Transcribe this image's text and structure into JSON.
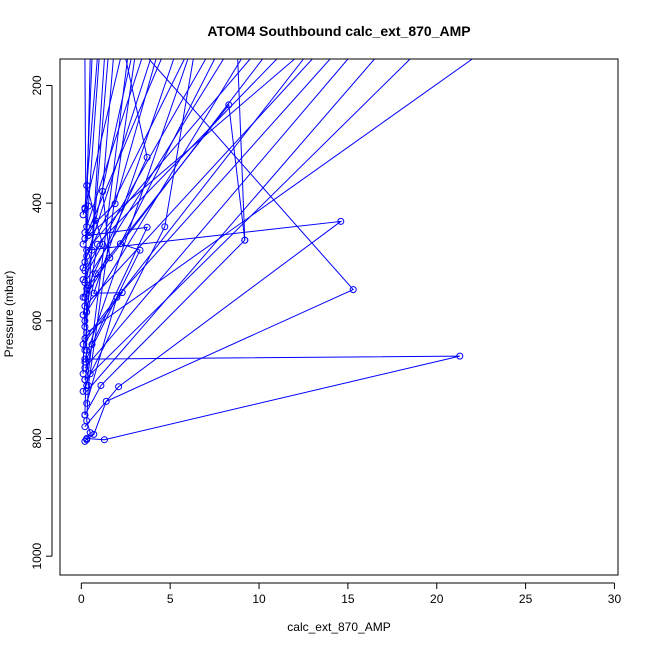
{
  "chart_data": {
    "type": "line",
    "title": "ATOM4 Southbound calc_ext_870_AMP",
    "xlabel": "calc_ext_870_AMP",
    "ylabel": "Pressure (mbar)",
    "xlim": [
      -1.2,
      30.2
    ],
    "ylim": [
      1032,
      155
    ],
    "y_reversed": true,
    "x_ticks": [
      0,
      5,
      10,
      15,
      20,
      25,
      30
    ],
    "x_tick_labels": [
      "0",
      "5",
      "10",
      "15",
      "20",
      "25",
      "30"
    ],
    "y_ticks": [
      200,
      400,
      600,
      800,
      1000
    ],
    "y_tick_labels": [
      "200",
      "400",
      "600",
      "800",
      "1000"
    ],
    "grid": false,
    "legend": "none",
    "line_color": "#0000ff",
    "point_style": "open-circle",
    "series": [
      {
        "values": [
          {
            "x": 0.3,
            "y": 800
          },
          {
            "x": 1.3,
            "y": 802
          },
          {
            "x": 21.3,
            "y": 660
          },
          {
            "x": 0.2,
            "y": 665
          },
          {
            "x": 6.0,
            "y": 155
          }
        ]
      },
      {
        "values": [
          {
            "x": 0.2,
            "y": 805
          },
          {
            "x": 0.5,
            "y": 790
          },
          {
            "x": 0.3,
            "y": 770
          },
          {
            "x": 0.4,
            "y": 710
          },
          {
            "x": 3.0,
            "y": 155
          }
        ]
      },
      {
        "values": [
          {
            "x": 0.3,
            "y": 802
          },
          {
            "x": 0.7,
            "y": 793
          },
          {
            "x": 1.4,
            "y": 737
          },
          {
            "x": 15.3,
            "y": 547
          },
          {
            "x": 3.8,
            "y": 155
          }
        ]
      },
      {
        "values": [
          {
            "x": 0.2,
            "y": 780
          },
          {
            "x": 2.1,
            "y": 712
          },
          {
            "x": 14.6,
            "y": 431
          },
          {
            "x": 0.3,
            "y": 480
          },
          {
            "x": 9.5,
            "y": 155
          }
        ]
      },
      {
        "values": [
          {
            "x": 0.2,
            "y": 760
          },
          {
            "x": 1.1,
            "y": 710
          },
          {
            "x": 9.2,
            "y": 463
          },
          {
            "x": 8.8,
            "y": 155
          }
        ]
      },
      {
        "values": [
          {
            "x": 0.1,
            "y": 720
          },
          {
            "x": 0.5,
            "y": 690
          },
          {
            "x": 4.7,
            "y": 440
          },
          {
            "x": 6.3,
            "y": 155
          }
        ]
      },
      {
        "values": [
          {
            "x": 0.2,
            "y": 700
          },
          {
            "x": 0.6,
            "y": 640
          },
          {
            "x": 3.7,
            "y": 441
          },
          {
            "x": 0.4,
            "y": 455
          },
          {
            "x": 12.0,
            "y": 155
          }
        ]
      },
      {
        "values": [
          {
            "x": 0.2,
            "y": 670
          },
          {
            "x": 3.3,
            "y": 480
          },
          {
            "x": 2.2,
            "y": 469
          },
          {
            "x": 7.5,
            "y": 155
          }
        ]
      },
      {
        "values": [
          {
            "x": 0.1,
            "y": 640
          },
          {
            "x": 2.3,
            "y": 552
          },
          {
            "x": 0.7,
            "y": 553
          },
          {
            "x": 5.2,
            "y": 155
          }
        ]
      },
      {
        "values": [
          {
            "x": 0.2,
            "y": 610
          },
          {
            "x": 0.8,
            "y": 520
          },
          {
            "x": 8.3,
            "y": 233
          },
          {
            "x": 9.2,
            "y": 463
          }
        ]
      },
      {
        "values": [
          {
            "x": 0.1,
            "y": 590
          },
          {
            "x": 0.4,
            "y": 540
          },
          {
            "x": 3.7,
            "y": 322
          },
          {
            "x": 2.5,
            "y": 155
          }
        ]
      },
      {
        "values": [
          {
            "x": 0.2,
            "y": 560
          },
          {
            "x": 1.6,
            "y": 493
          },
          {
            "x": 1.2,
            "y": 380
          },
          {
            "x": 1.8,
            "y": 155
          }
        ]
      },
      {
        "values": [
          {
            "x": 0.1,
            "y": 530
          },
          {
            "x": 1.2,
            "y": 470
          },
          {
            "x": 0.3,
            "y": 370
          },
          {
            "x": 0.6,
            "y": 155
          }
        ]
      },
      {
        "values": [
          {
            "x": 0.2,
            "y": 500
          },
          {
            "x": 0.4,
            "y": 405
          },
          {
            "x": 1.0,
            "y": 155
          }
        ]
      },
      {
        "values": [
          {
            "x": 0.1,
            "y": 470
          },
          {
            "x": 0.8,
            "y": 430
          },
          {
            "x": 2.8,
            "y": 155
          }
        ]
      },
      {
        "values": [
          {
            "x": 0.2,
            "y": 450
          },
          {
            "x": 1.9,
            "y": 401
          },
          {
            "x": 4.2,
            "y": 155
          }
        ]
      },
      {
        "values": [
          {
            "x": 0.1,
            "y": 420
          },
          {
            "x": 0.2,
            "y": 408
          },
          {
            "x": 0.9,
            "y": 155
          }
        ]
      },
      {
        "values": [
          {
            "x": 0.3,
            "y": 740
          },
          {
            "x": 2.0,
            "y": 560
          },
          {
            "x": 14.0,
            "y": 155
          }
        ]
      },
      {
        "values": [
          {
            "x": 0.3,
            "y": 720
          },
          {
            "x": 16.5,
            "y": 155
          }
        ]
      },
      {
        "values": [
          {
            "x": 0.2,
            "y": 700
          },
          {
            "x": 18.5,
            "y": 155
          }
        ]
      },
      {
        "values": [
          {
            "x": 0.3,
            "y": 620
          },
          {
            "x": 22.0,
            "y": 155
          }
        ]
      },
      {
        "values": [
          {
            "x": 0.2,
            "y": 600
          },
          {
            "x": 0.9,
            "y": 470
          },
          {
            "x": 11.0,
            "y": 155
          }
        ]
      },
      {
        "values": [
          {
            "x": 0.2,
            "y": 575
          },
          {
            "x": 13.0,
            "y": 155
          }
        ]
      },
      {
        "values": [
          {
            "x": 0.3,
            "y": 545
          },
          {
            "x": 10.2,
            "y": 155
          }
        ]
      },
      {
        "values": [
          {
            "x": 0.2,
            "y": 515
          },
          {
            "x": 7.0,
            "y": 155
          }
        ]
      },
      {
        "values": [
          {
            "x": 0.3,
            "y": 490
          },
          {
            "x": 5.8,
            "y": 155
          }
        ]
      },
      {
        "values": [
          {
            "x": 0.2,
            "y": 460
          },
          {
            "x": 4.5,
            "y": 155
          }
        ]
      },
      {
        "values": [
          {
            "x": 0.3,
            "y": 440
          },
          {
            "x": 3.4,
            "y": 155
          }
        ]
      },
      {
        "values": [
          {
            "x": 0.2,
            "y": 410
          },
          {
            "x": 2.2,
            "y": 155
          }
        ]
      },
      {
        "values": [
          {
            "x": 0.1,
            "y": 560
          },
          {
            "x": 0.6,
            "y": 480
          },
          {
            "x": 1.5,
            "y": 155
          }
        ]
      },
      {
        "values": [
          {
            "x": 0.2,
            "y": 760
          },
          {
            "x": 0.3,
            "y": 650
          },
          {
            "x": 0.2,
            "y": 155
          }
        ]
      },
      {
        "values": [
          {
            "x": 0.1,
            "y": 690
          },
          {
            "x": 0.5,
            "y": 155
          }
        ]
      },
      {
        "values": [
          {
            "x": 0.2,
            "y": 650
          },
          {
            "x": 1.3,
            "y": 155
          }
        ]
      },
      {
        "values": [
          {
            "x": 0.1,
            "y": 510
          },
          {
            "x": 3.9,
            "y": 155
          }
        ]
      },
      {
        "values": [
          {
            "x": 0.2,
            "y": 535
          },
          {
            "x": 8.0,
            "y": 155
          }
        ]
      },
      {
        "values": [
          {
            "x": 0.3,
            "y": 585
          },
          {
            "x": 9.0,
            "y": 155
          }
        ]
      },
      {
        "values": [
          {
            "x": 0.2,
            "y": 630
          },
          {
            "x": 12.5,
            "y": 155
          }
        ]
      },
      {
        "values": [
          {
            "x": 0.2,
            "y": 680
          },
          {
            "x": 15.0,
            "y": 155
          }
        ]
      },
      {
        "values": [
          {
            "x": 0.3,
            "y": 710
          },
          {
            "x": 2.6,
            "y": 155
          }
        ]
      }
    ]
  }
}
